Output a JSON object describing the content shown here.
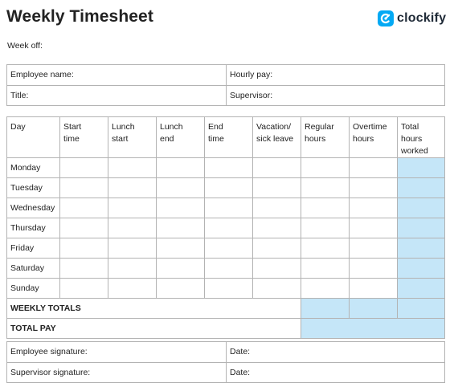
{
  "header": {
    "title": "Weekly Timesheet",
    "logo_text": "clockify"
  },
  "week_of_label": "Week off:",
  "info": {
    "employee_name_label": "Employee name:",
    "hourly_pay_label": "Hourly pay:",
    "title_label": "Title:",
    "supervisor_label": "Supervisor:"
  },
  "table": {
    "columns": [
      [
        "Day"
      ],
      [
        "Start",
        "time"
      ],
      [
        "Lunch",
        "start"
      ],
      [
        "Lunch",
        "end"
      ],
      [
        "End",
        "time"
      ],
      [
        "Vacation/",
        "sick leave"
      ],
      [
        "Regular",
        "hours"
      ],
      [
        "Overtime",
        "hours"
      ],
      [
        "Total hours",
        "worked"
      ]
    ],
    "days": [
      "Monday",
      "Tuesday",
      "Wednesday",
      "Thursday",
      "Friday",
      "Saturday",
      "Sunday"
    ],
    "weekly_totals_label": "WEEKLY TOTALS",
    "total_pay_label": "TOTAL PAY"
  },
  "signatures": {
    "employee_signature_label": "Employee signature:",
    "date1_label": "Date:",
    "supervisor_signature_label": "Supervisor signature:",
    "date2_label": "Date:"
  },
  "colors": {
    "highlight": "#c5e6f8",
    "border": "#b3b3b3",
    "brand": "#03a9f4"
  }
}
